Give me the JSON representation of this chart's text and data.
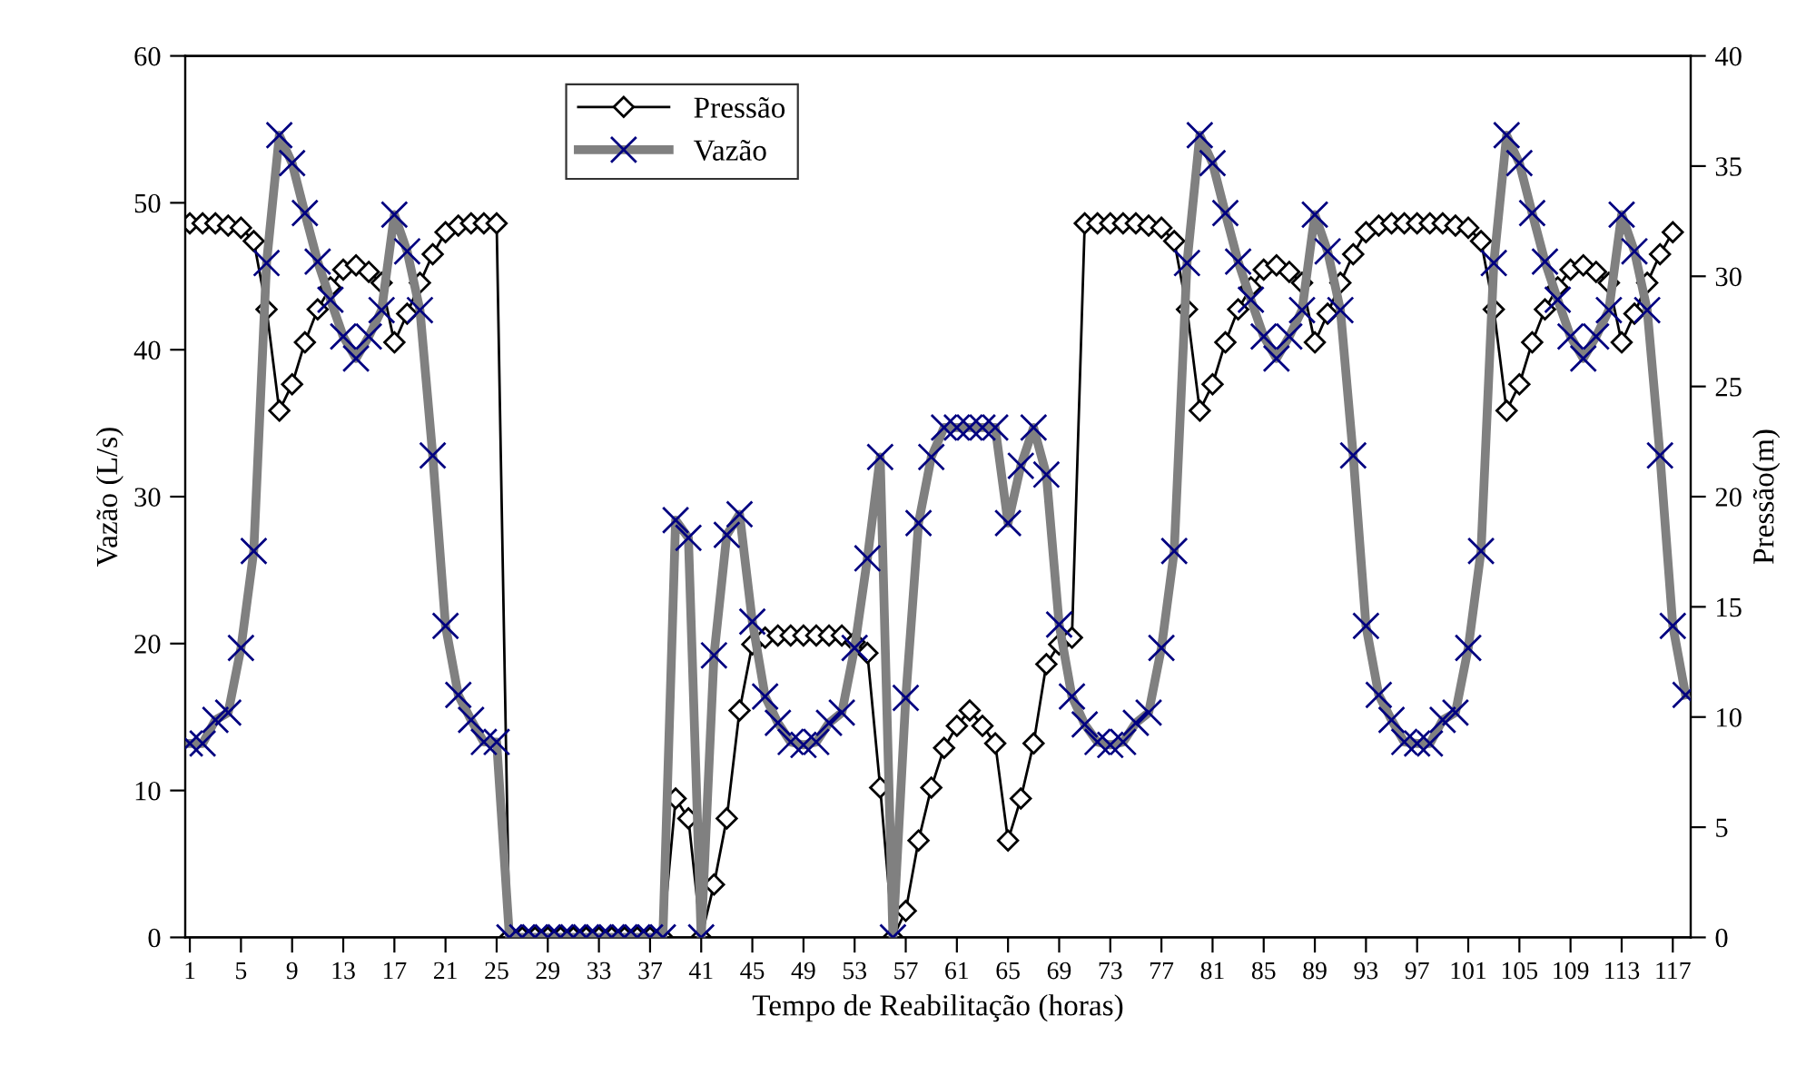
{
  "chart_data": {
    "type": "line",
    "xlabel": "Tempo de Reabilitação (horas)",
    "ylabel": "Vazão (L/s)",
    "y2label": "Pressão(m)",
    "categories": [
      "1",
      null,
      null,
      null,
      "5",
      null,
      null,
      null,
      "9",
      null,
      null,
      null,
      "13",
      null,
      null,
      null,
      "17",
      null,
      null,
      null,
      "21",
      null,
      null,
      null,
      "25",
      null,
      null,
      null,
      "29",
      null,
      null,
      null,
      "33",
      null,
      null,
      null,
      "37",
      null,
      null,
      null,
      "41",
      null,
      null,
      null,
      "45",
      null,
      null,
      null,
      "49",
      null,
      null,
      null,
      "53",
      null,
      null,
      null,
      "57",
      null,
      null,
      null,
      "61",
      null,
      null,
      null,
      "65",
      null,
      null,
      null,
      "69",
      null,
      null,
      null,
      "73",
      null,
      null,
      null,
      "77",
      null,
      null,
      null,
      "81",
      null,
      null,
      null,
      "85",
      null,
      null,
      null,
      "89",
      null,
      null,
      null,
      "93",
      null,
      null,
      null,
      "97",
      null,
      null,
      null,
      "101",
      null,
      null,
      null,
      "105",
      null,
      null,
      null,
      "109",
      null,
      null,
      null,
      "113",
      null,
      null,
      null,
      "117",
      null
    ],
    "series": [
      {
        "name": "Pressão",
        "color": "#000000",
        "axis": "y2",
        "marker": "diamond",
        "values": [
          32.4,
          32.4,
          32.4,
          32.3,
          32.2,
          31.6,
          28.5,
          23.9,
          25.1,
          27.0,
          28.5,
          29.5,
          30.3,
          30.5,
          30.2,
          29.7,
          27.0,
          28.3,
          29.7,
          31.0,
          32.0,
          32.3,
          32.4,
          32.4,
          32.4,
          0,
          0,
          0,
          0,
          0,
          0,
          0,
          0,
          0,
          0,
          0,
          0,
          0,
          6.3,
          5.4,
          0,
          2.4,
          5.4,
          10.3,
          13.3,
          13.6,
          13.7,
          13.7,
          13.7,
          13.7,
          13.7,
          13.7,
          13.4,
          12.9,
          6.8,
          0,
          1.2,
          4.4,
          6.8,
          8.6,
          9.6,
          10.3,
          9.6,
          8.8,
          4.4,
          6.3,
          8.8,
          12.4,
          13.3,
          13.6,
          32.4,
          32.4,
          32.4,
          32.4,
          32.4,
          32.3,
          32.2,
          31.6,
          28.5,
          23.9,
          25.1,
          27.0,
          28.5,
          29.5,
          30.3,
          30.5,
          30.2,
          29.7,
          27.0,
          28.3,
          29.7,
          31.0,
          32.0,
          32.3,
          32.4,
          32.4,
          32.4,
          32.4,
          32.4,
          32.3,
          32.2,
          31.6,
          28.5,
          23.9,
          25.1,
          27.0,
          28.5,
          29.5,
          30.3,
          30.5,
          30.2,
          29.7,
          27.0,
          28.3,
          29.7,
          31.0,
          32.0,
          null
        ]
      },
      {
        "name": "Vazão",
        "color": "#808080",
        "marker": "cross",
        "values": [
          13.2,
          13.2,
          14.8,
          15.3,
          19.7,
          26.3,
          45.9,
          54.6,
          52.7,
          49.3,
          46.0,
          43.4,
          40.9,
          39.4,
          40.9,
          42.7,
          49.2,
          46.7,
          42.7,
          32.8,
          21.2,
          16.5,
          14.8,
          13.3,
          13.3,
          0,
          0,
          0,
          0,
          0,
          0,
          0,
          0,
          0,
          0,
          0,
          0,
          0,
          28.4,
          27.2,
          0,
          19.2,
          27.4,
          28.8,
          21.5,
          16.4,
          14.6,
          13.3,
          13.1,
          13.3,
          14.6,
          15.3,
          19.7,
          25.8,
          32.7,
          0,
          16.3,
          28.2,
          32.7,
          34.7,
          34.7,
          34.7,
          34.7,
          34.7,
          28.2,
          32.1,
          34.7,
          31.5,
          21.3,
          16.4,
          14.5,
          13.3,
          13.1,
          13.3,
          14.6,
          15.3,
          19.7,
          26.3,
          45.9,
          54.6,
          52.7,
          49.3,
          46.0,
          43.4,
          40.9,
          39.4,
          40.9,
          42.7,
          49.2,
          46.7,
          42.7,
          32.8,
          21.2,
          16.5,
          14.8,
          13.3,
          13.2,
          13.2,
          14.8,
          15.3,
          19.7,
          26.3,
          45.9,
          54.6,
          52.7,
          49.3,
          46.0,
          43.4,
          40.9,
          39.4,
          40.9,
          42.7,
          49.2,
          46.7,
          42.7,
          32.8,
          21.2,
          16.5
        ]
      }
    ],
    "ylim": [
      0,
      60
    ],
    "yticks": [
      0,
      10,
      20,
      30,
      40,
      50,
      60
    ],
    "y2lim": [
      0,
      40
    ],
    "y2ticks": [
      0,
      5,
      10,
      15,
      20,
      25,
      30,
      35,
      40
    ],
    "grid": false,
    "legend": "top"
  }
}
